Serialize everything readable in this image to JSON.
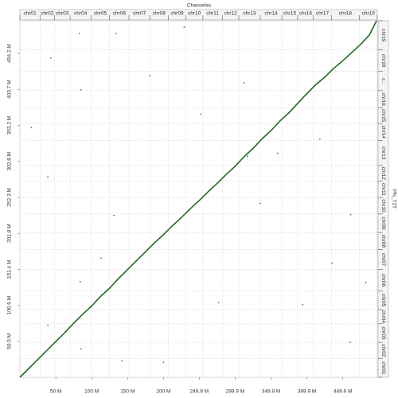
{
  "chart_data": {
    "type": "dotplot",
    "title": "Chasselas",
    "y_title": "PN_T2T",
    "xlim": [
      0,
      498
    ],
    "ylim": [
      0,
      500
    ],
    "grid": true,
    "xticks": [
      {
        "value": 50,
        "label": "50 M"
      },
      {
        "value": 100,
        "label": "100 M"
      },
      {
        "value": 150,
        "label": "150 M"
      },
      {
        "value": 200,
        "label": "200 M"
      },
      {
        "value": 249.9,
        "label": "249.9 M"
      },
      {
        "value": 299.9,
        "label": "299.9 M"
      },
      {
        "value": 349.9,
        "label": "349.9 M"
      },
      {
        "value": 399.9,
        "label": "399.9 M"
      },
      {
        "value": 449.9,
        "label": "449.9 M"
      }
    ],
    "yticks": [
      {
        "value": 50.5,
        "label": "50.5 M"
      },
      {
        "value": 100.9,
        "label": "100.9 M"
      },
      {
        "value": 151.4,
        "label": "151.4 M"
      },
      {
        "value": 201.8,
        "label": "201.8 M"
      },
      {
        "value": 252.3,
        "label": "252.3 M"
      },
      {
        "value": 302.8,
        "label": "302.8 M"
      },
      {
        "value": 353.2,
        "label": "353.2 M"
      },
      {
        "value": 403.7,
        "label": "403.7 M"
      },
      {
        "value": 454.2,
        "label": "454.2 M"
      }
    ],
    "x_chromosomes": {
      "labels": [
        "chr01",
        "chr02",
        "chr03",
        "chr04",
        "chr05",
        "chr06",
        "chr07",
        "chr08",
        "chr09",
        "chr10",
        "chr11",
        "chr12",
        "chr13",
        "chr14",
        "chr15",
        "chr16",
        "chr17",
        "chr18",
        "chr19"
      ],
      "bounds": [
        0,
        28,
        48,
        70,
        99,
        125,
        152,
        181,
        207,
        231,
        255,
        282,
        305,
        335,
        365,
        387,
        409,
        434,
        473,
        498
      ]
    },
    "y_chromosomes": {
      "labels": [
        "chr01",
        "chr02",
        "chr03",
        "chr04",
        "chr05",
        "chr06",
        "chr07",
        "chr08",
        "chr09",
        "chr10",
        "chr11",
        "chr12",
        "chr13",
        "chr14",
        "chr15",
        "chr16",
        "c..",
        "chr18",
        "chr19"
      ],
      "bounds": [
        0,
        26,
        49,
        75,
        95,
        121,
        151,
        179,
        203,
        229,
        252,
        275,
        297,
        332,
        356,
        378,
        402,
        429,
        459,
        500
      ]
    },
    "series": [
      {
        "mode": "line",
        "color": "#1e6b1e",
        "x": [
          0,
          12,
          25,
          37,
          50,
          62,
          75,
          87,
          100,
          112,
          125,
          137,
          150,
          162,
          175,
          187,
          200,
          212,
          225,
          237,
          250,
          262,
          275,
          287,
          300,
          312,
          325,
          337,
          350,
          362,
          375,
          387,
          400,
          412,
          425,
          437,
          450,
          462,
          475,
          487,
          497
        ],
        "values": [
          0,
          12,
          25,
          37,
          50,
          62,
          76,
          88,
          100,
          113,
          125,
          138,
          151,
          163,
          176,
          188,
          200,
          212,
          224,
          236,
          248,
          260,
          272,
          284,
          296,
          309,
          321,
          334,
          346,
          359,
          371,
          384,
          398,
          410,
          421,
          433,
          444,
          455,
          467,
          480,
          500
        ]
      },
      {
        "mode": "points",
        "color": "#2e8b57",
        "x": [
          83,
          43,
          85,
          134,
          252,
          84,
          16,
          39,
          113,
          359,
          394,
          312,
          418,
          461,
          435,
          277,
          200,
          460,
          142,
          317,
          482,
          131,
          181,
          39,
          85,
          335,
          229
        ],
        "values": [
          482,
          448,
          403,
          482,
          369,
          134,
          350,
          281,
          167,
          314,
          102,
          413,
          334,
          228,
          160,
          105,
          21,
          49,
          23,
          310,
          133,
          227,
          423,
          73,
          40,
          244,
          491
        ]
      }
    ]
  }
}
